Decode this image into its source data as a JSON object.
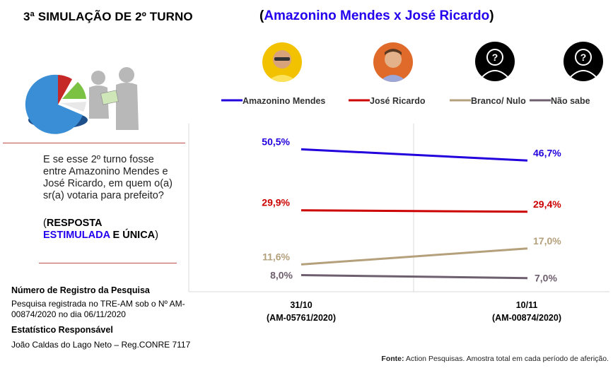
{
  "header": {
    "title": "3ª SIMULAÇÃO DE 2º TURNO",
    "matchup_open": "(",
    "matchup_names": "Amazonino Mendes x José Ricardo",
    "matchup_close": ")"
  },
  "question": {
    "text": "E se esse 2º turno fosse entre Amazonino Mendes e José Ricardo, em quem o(a) sr(a) votaria para prefeito?",
    "resp_open": "(",
    "resp_word1": "RESPOSTA",
    "resp_word2": "ESTIMULADA",
    "resp_word3": " E ÚNICA",
    "resp_close": ")"
  },
  "registration": {
    "heading": "Número de Registro da Pesquisa",
    "text": "Pesquisa registrada no TRE-AM sob o Nº AM-00874/2020 no dia 06/11/2020",
    "stat_heading": "Estatístico Responsável",
    "stat_name": "João Caldas do Lago Neto – Reg.CONRE 7117"
  },
  "source": {
    "label": "Fonte:",
    "text": " Action Pesquisas. Amostra total em cada período de aferição."
  },
  "chart_data": {
    "type": "line",
    "categories": [
      {
        "date": "31/10",
        "code": "(AM-05761/2020)"
      },
      {
        "date": "10/11",
        "code": "(AM-00874/2020)"
      }
    ],
    "ylim": [
      0,
      60
    ],
    "legend_position": "top",
    "series": [
      {
        "name": "Amazonino Mendes",
        "color": "#2200dd",
        "values": [
          50.5,
          46.7
        ],
        "labels": [
          "50,5%",
          "46,7%"
        ]
      },
      {
        "name": "José Ricardo",
        "color": "#cc0000",
        "values": [
          29.9,
          29.4
        ],
        "labels": [
          "29,9%",
          "29,4%"
        ]
      },
      {
        "name": "Branco/ Nulo",
        "color": "#b5a07c",
        "values": [
          11.6,
          17.0
        ],
        "labels": [
          "11,6%",
          "17,0%"
        ]
      },
      {
        "name": "Não sabe",
        "color": "#6e5f6e",
        "values": [
          8.0,
          7.0
        ],
        "labels": [
          "8,0%",
          "7,0%"
        ]
      }
    ]
  },
  "icons": {
    "left_illustration": "pie-chart-and-people-icon",
    "unknown_candidate": "unknown-person-icon"
  }
}
